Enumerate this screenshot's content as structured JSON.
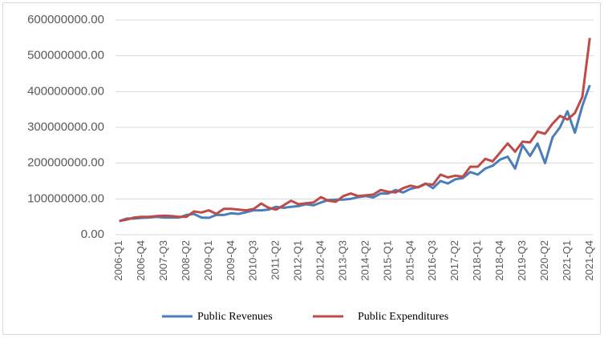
{
  "chart_data": {
    "type": "line",
    "categories": [
      "2006-Q1",
      null,
      null,
      "2006-Q4",
      null,
      null,
      "2007-Q3",
      null,
      null,
      "2008-Q2",
      null,
      null,
      "2009-Q1",
      null,
      null,
      "2009-Q4",
      null,
      null,
      "2010-Q3",
      null,
      null,
      "2011-Q2",
      null,
      null,
      "2012-Q1",
      null,
      null,
      "2012-Q4",
      null,
      null,
      "2013-Q3",
      null,
      null,
      "2014-Q2",
      null,
      null,
      "2015-Q1",
      null,
      null,
      "2015-Q4",
      null,
      null,
      "2016-Q3",
      null,
      null,
      "2017-Q2",
      null,
      null,
      "2018-Q1",
      null,
      null,
      "2018-Q4",
      null,
      null,
      "2019-Q3",
      null,
      null,
      "2020-Q2",
      null,
      null,
      "2021-Q1",
      null,
      null,
      "2021-Q4"
    ],
    "series": [
      {
        "name": "Public Revenues",
        "color": "#4a7ebb",
        "values": [
          38000000,
          45000000,
          45000000,
          47000000,
          48000000,
          50000000,
          48000000,
          48000000,
          48000000,
          55000000,
          58000000,
          48000000,
          47000000,
          55000000,
          55000000,
          60000000,
          58000000,
          63000000,
          68000000,
          68000000,
          70000000,
          78000000,
          75000000,
          78000000,
          80000000,
          85000000,
          82000000,
          90000000,
          97000000,
          98000000,
          98000000,
          100000000,
          105000000,
          108000000,
          104000000,
          115000000,
          115000000,
          125000000,
          118000000,
          128000000,
          133000000,
          143000000,
          130000000,
          150000000,
          143000000,
          155000000,
          158000000,
          175000000,
          168000000,
          185000000,
          193000000,
          210000000,
          218000000,
          185000000,
          250000000,
          220000000,
          255000000,
          200000000,
          272000000,
          300000000,
          345000000,
          285000000,
          360000000,
          418000000
        ]
      },
      {
        "name": "Public Expenditures",
        "color": "#be4b48",
        "values": [
          38000000,
          42000000,
          48000000,
          50000000,
          50000000,
          52000000,
          53000000,
          52000000,
          50000000,
          50000000,
          65000000,
          62000000,
          68000000,
          58000000,
          72000000,
          72000000,
          70000000,
          68000000,
          72000000,
          87000000,
          75000000,
          70000000,
          82000000,
          95000000,
          85000000,
          88000000,
          90000000,
          105000000,
          95000000,
          92000000,
          108000000,
          115000000,
          108000000,
          110000000,
          112000000,
          125000000,
          120000000,
          118000000,
          130000000,
          137000000,
          132000000,
          142000000,
          140000000,
          168000000,
          160000000,
          165000000,
          162000000,
          190000000,
          190000000,
          212000000,
          205000000,
          230000000,
          255000000,
          232000000,
          260000000,
          258000000,
          288000000,
          282000000,
          310000000,
          332000000,
          322000000,
          340000000,
          385000000,
          550000000
        ]
      }
    ],
    "ylim": [
      0,
      600000000
    ],
    "yticks": [
      {
        "value": 0,
        "label": "0.00"
      },
      {
        "value": 100000000,
        "label": "100000000.00"
      },
      {
        "value": 200000000,
        "label": "200000000.00"
      },
      {
        "value": 300000000,
        "label": "300000000.00"
      },
      {
        "value": 400000000,
        "label": "400000000.00"
      },
      {
        "value": 500000000,
        "label": "500000000.00"
      },
      {
        "value": 600000000,
        "label": "600000000.00"
      }
    ],
    "grid": true
  }
}
